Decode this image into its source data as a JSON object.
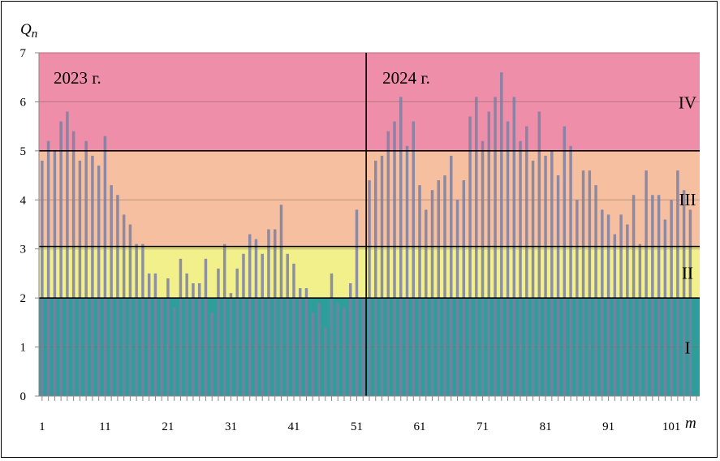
{
  "chart_data": {
    "type": "bar",
    "title": "",
    "xlabel": "m",
    "ylabel": "Q",
    "ylabel_sub": "n",
    "xlim": [
      1,
      105
    ],
    "ylim": [
      0,
      7
    ],
    "yticks": [
      "0",
      "1",
      "2",
      "3",
      "4",
      "5",
      "6",
      "7"
    ],
    "xticks": [
      {
        "m": 1,
        "label": "1"
      },
      {
        "m": 11,
        "label": "11"
      },
      {
        "m": 21,
        "label": "21"
      },
      {
        "m": 31,
        "label": "31"
      },
      {
        "m": 41,
        "label": "41"
      },
      {
        "m": 51,
        "label": "51"
      },
      {
        "m": 61,
        "label": "61"
      },
      {
        "m": 71,
        "label": "71"
      },
      {
        "m": 81,
        "label": "81"
      },
      {
        "m": 91,
        "label": "91"
      },
      {
        "m": 101,
        "label": "101"
      }
    ],
    "zones": [
      {
        "name": "I",
        "from": 0,
        "to": 2,
        "color": "#2e9e9a"
      },
      {
        "name": "II",
        "from": 2,
        "to": 3.05,
        "color": "#f2f08a"
      },
      {
        "name": "III",
        "from": 3.05,
        "to": 5,
        "color": "#f6c0a0"
      },
      {
        "name": "IV",
        "from": 5,
        "to": 7,
        "color": "#ee8ea8"
      }
    ],
    "years": [
      {
        "label": "2023 г.",
        "start_m": 1
      },
      {
        "label": "2024 г.",
        "start_m": 53
      }
    ],
    "divider_m": 52.5,
    "bar_color": "#7b7fa3",
    "x": [
      1,
      2,
      3,
      4,
      5,
      6,
      7,
      8,
      9,
      10,
      11,
      12,
      13,
      14,
      15,
      16,
      17,
      18,
      19,
      20,
      21,
      22,
      23,
      24,
      25,
      26,
      27,
      28,
      29,
      30,
      31,
      32,
      33,
      34,
      35,
      36,
      37,
      38,
      39,
      40,
      41,
      42,
      43,
      44,
      45,
      46,
      47,
      48,
      49,
      50,
      51,
      52,
      53,
      54,
      55,
      56,
      57,
      58,
      59,
      60,
      61,
      62,
      63,
      64,
      65,
      66,
      67,
      68,
      69,
      70,
      71,
      72,
      73,
      74,
      75,
      76,
      77,
      78,
      79,
      80,
      81,
      82,
      83,
      84,
      85,
      86,
      87,
      88,
      89,
      90,
      91,
      92,
      93,
      94,
      95,
      96,
      97,
      98,
      99,
      100,
      101,
      102,
      103,
      104
    ],
    "values": [
      4.8,
      5.2,
      5.0,
      5.6,
      5.8,
      5.4,
      4.8,
      5.2,
      4.9,
      4.7,
      5.3,
      4.3,
      4.1,
      3.7,
      3.5,
      3.1,
      3.1,
      2.5,
      2.5,
      2.0,
      2.4,
      1.8,
      2.8,
      2.5,
      2.3,
      2.3,
      2.8,
      1.7,
      2.6,
      3.1,
      2.1,
      2.6,
      2.9,
      3.3,
      3.2,
      2.9,
      3.4,
      3.4,
      3.9,
      2.9,
      2.7,
      2.2,
      2.2,
      1.7,
      1.9,
      1.4,
      2.5,
      1.9,
      1.8,
      2.3,
      3.8,
      2.0,
      4.4,
      4.8,
      4.9,
      5.4,
      5.6,
      6.1,
      5.1,
      5.6,
      4.3,
      3.8,
      4.2,
      4.4,
      4.5,
      4.9,
      4.0,
      4.4,
      5.7,
      6.1,
      5.2,
      5.8,
      6.1,
      6.6,
      5.6,
      6.1,
      5.2,
      5.5,
      4.8,
      5.8,
      4.9,
      5.0,
      4.5,
      5.5,
      5.1,
      4.0,
      4.6,
      4.6,
      4.3,
      3.8,
      3.7,
      3.3,
      3.7,
      3.5,
      4.1,
      3.1,
      4.6,
      4.1,
      4.1,
      3.6,
      4.0,
      4.6,
      4.2,
      3.8
    ]
  }
}
